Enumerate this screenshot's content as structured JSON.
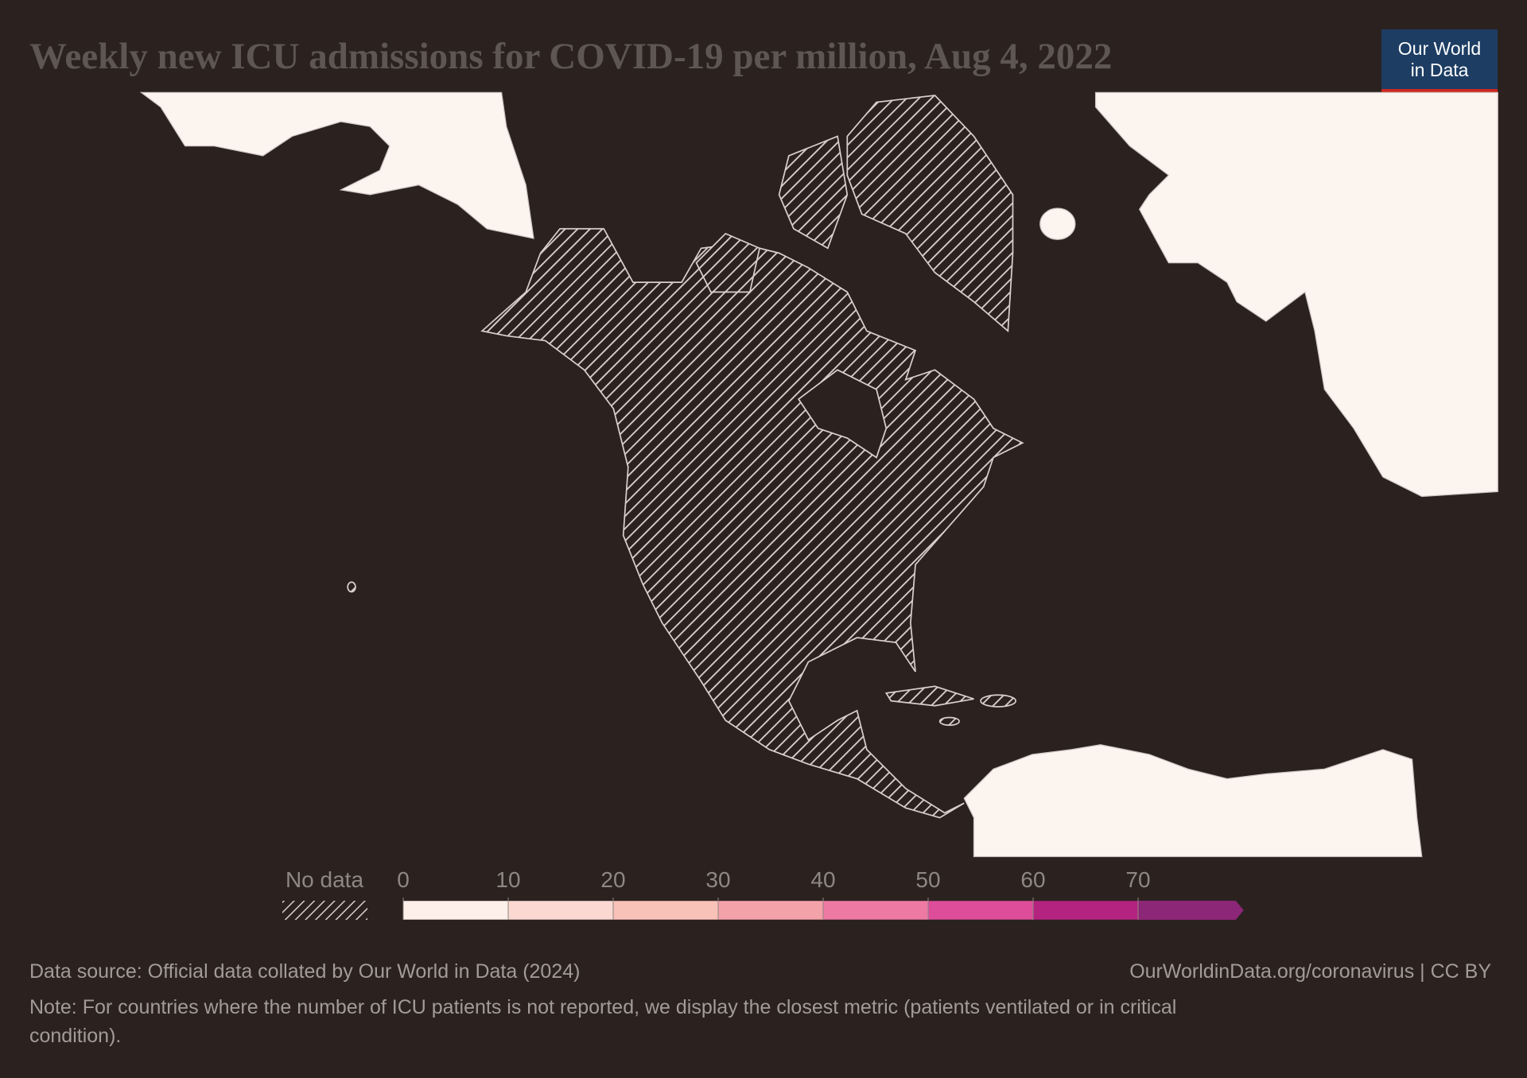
{
  "header": {
    "title": "Weekly new ICU admissions for COVID-19 per million, Aug 4, 2022",
    "logo": [
      "Our World",
      "in Data"
    ]
  },
  "legend": {
    "no_data_label": "No data",
    "ticks": [
      0,
      10,
      20,
      30,
      40,
      50,
      60,
      70
    ],
    "colors": [
      "#fdefe9",
      "#fbd9d2",
      "#f9c2b8",
      "#f4a2aa",
      "#ee7aa3",
      "#dd4d9a",
      "#b4237f",
      "#8c2677"
    ]
  },
  "footer": {
    "source": "Data source: Official data collated by Our World in Data (2024)",
    "url": "OurWorldinData.org/coronavirus | CC BY",
    "note_lines": [
      "Note: For countries where the number of ICU patients is not reported, we display the closest metric (patients ventilated or in critical",
      "condition)."
    ]
  }
}
